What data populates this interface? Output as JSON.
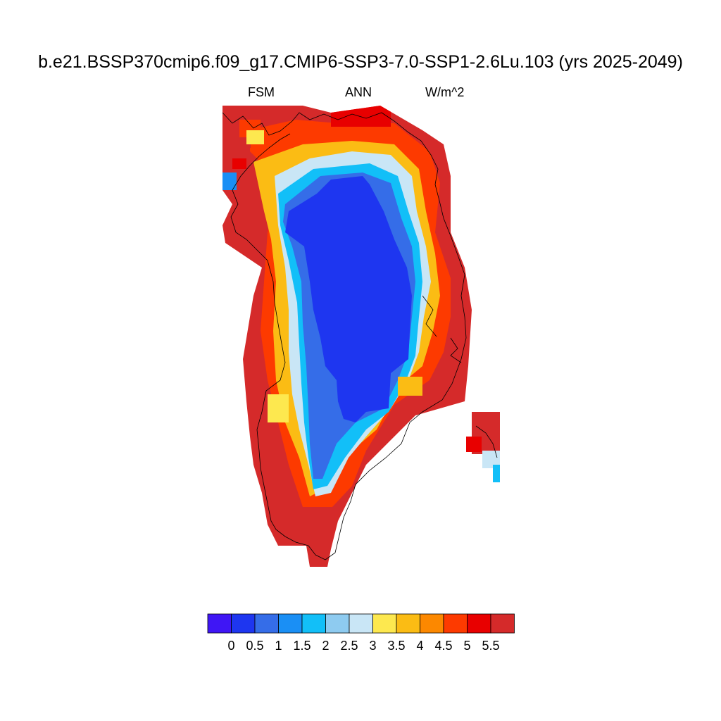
{
  "title": "b.e21.BSSP370cmip6.f09_g17.CMIP6-SSP3-7.0-SSP1-2.6Lu.103 (yrs 2025-2049)",
  "subtitle": {
    "left": "FSM",
    "center": "ANN",
    "right": "W/m^2"
  },
  "colorbar": {
    "colors": [
      "#3f16f5",
      "#1e36f0",
      "#356de8",
      "#1a8ff5",
      "#12bff8",
      "#8ecbf0",
      "#c9e6f6",
      "#fde84f",
      "#fbbc14",
      "#fc8800",
      "#fd3a00",
      "#e80000",
      "#d52a2a"
    ],
    "labels": [
      "0",
      "0.5",
      "1",
      "1.5",
      "2",
      "2.5",
      "3",
      "3.5",
      "4",
      "4.5",
      "5",
      "5.5"
    ]
  }
}
